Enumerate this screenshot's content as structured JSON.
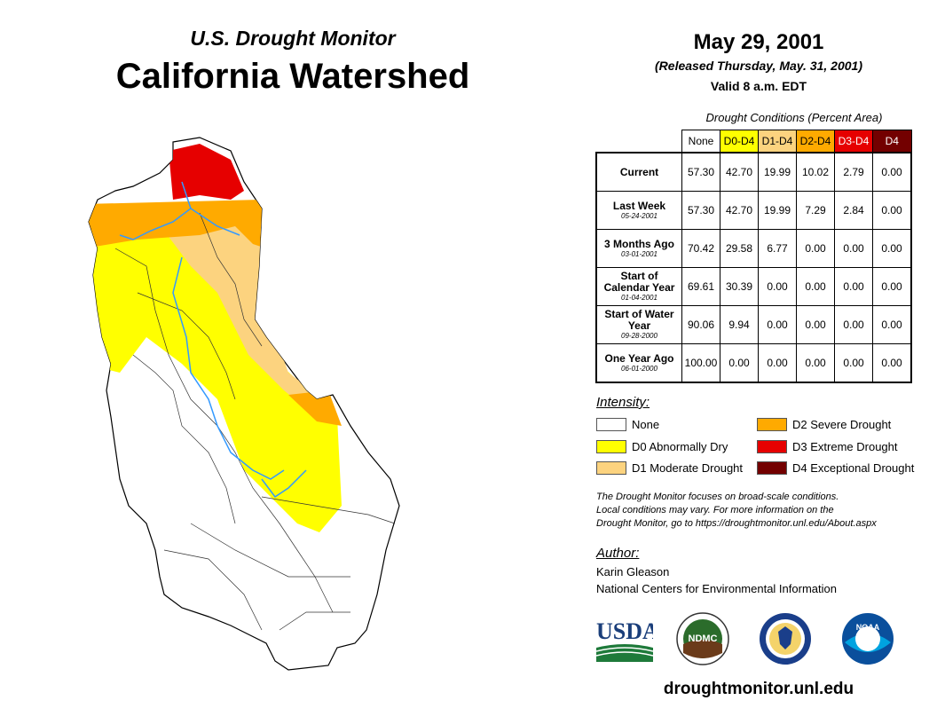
{
  "header": {
    "subtitle": "U.S. Drought Monitor",
    "title": "California Watershed",
    "date": "May 29, 2001",
    "released": "(Released Thursday, May. 31, 2001)",
    "valid": "Valid 8 a.m. EDT"
  },
  "table": {
    "caption": "Drought Conditions (Percent Area)",
    "columns": [
      {
        "label": "None",
        "bg": "#ffffff",
        "fg": "#000000"
      },
      {
        "label": "D0-D4",
        "bg": "#ffff00",
        "fg": "#000000"
      },
      {
        "label": "D1-D4",
        "bg": "#fcd37f",
        "fg": "#000000"
      },
      {
        "label": "D2-D4",
        "bg": "#ffaa00",
        "fg": "#000000"
      },
      {
        "label": "D3-D4",
        "bg": "#e60000",
        "fg": "#ffffff"
      },
      {
        "label": "D4",
        "bg": "#730000",
        "fg": "#ffffff"
      }
    ],
    "rows": [
      {
        "label": "Current",
        "date": "",
        "values": [
          "57.30",
          "42.70",
          "19.99",
          "10.02",
          "2.79",
          "0.00"
        ]
      },
      {
        "label": "Last Week",
        "date": "05-24-2001",
        "values": [
          "57.30",
          "42.70",
          "19.99",
          "7.29",
          "2.84",
          "0.00"
        ]
      },
      {
        "label": "3 Months Ago",
        "date": "03-01-2001",
        "values": [
          "70.42",
          "29.58",
          "6.77",
          "0.00",
          "0.00",
          "0.00"
        ]
      },
      {
        "label": "Start of Calendar Year",
        "date": "01-04-2001",
        "values": [
          "69.61",
          "30.39",
          "0.00",
          "0.00",
          "0.00",
          "0.00"
        ]
      },
      {
        "label": "Start of Water Year",
        "date": "09-28-2000",
        "values": [
          "90.06",
          "9.94",
          "0.00",
          "0.00",
          "0.00",
          "0.00"
        ]
      },
      {
        "label": "One Year Ago",
        "date": "06-01-2000",
        "values": [
          "100.00",
          "0.00",
          "0.00",
          "0.00",
          "0.00",
          "0.00"
        ]
      }
    ]
  },
  "legend": {
    "title": "Intensity:",
    "items": [
      {
        "label": "None",
        "color": "#ffffff"
      },
      {
        "label": "D0 Abnormally Dry",
        "color": "#ffff00"
      },
      {
        "label": "D1 Moderate Drought",
        "color": "#fcd37f"
      },
      {
        "label": "D2 Severe Drought",
        "color": "#ffaa00"
      },
      {
        "label": "D3 Extreme Drought",
        "color": "#e60000"
      },
      {
        "label": "D4 Exceptional Drought",
        "color": "#730000"
      }
    ]
  },
  "note": {
    "line1": "The Drought Monitor focuses on broad-scale conditions.",
    "line2": "Local conditions may vary. For more information on the",
    "line3": "Drought Monitor, go to https://droughtmonitor.unl.edu/About.aspx"
  },
  "author": {
    "title": "Author:",
    "name": "Karin Gleason",
    "org": "National Centers for Environmental Information"
  },
  "logos": {
    "usda": "USDA",
    "ndmc": "NDMC",
    "noaa": "NOAA"
  },
  "footer": {
    "website": "droughtmonitor.unl.edu"
  }
}
